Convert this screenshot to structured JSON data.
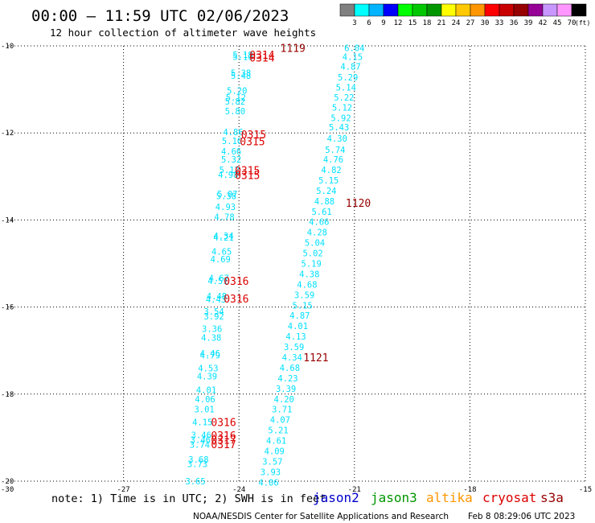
{
  "header": {
    "title": "00:00 – 11:59 UTC 02/06/2023",
    "subtitle": "12 hour collection of altimeter wave heights"
  },
  "colorbar": {
    "colors": [
      "#808080",
      "#00ffff",
      "#00b4ff",
      "#0000ff",
      "#00ff00",
      "#00c800",
      "#009600",
      "#ffff00",
      "#ffc800",
      "#ff9600",
      "#ff0000",
      "#c80000",
      "#960000",
      "#960096",
      "#c896ff",
      "#ff96ff",
      "#000000"
    ],
    "labels": [
      "3",
      "6",
      "9",
      "12",
      "15",
      "18",
      "21",
      "24",
      "27",
      "30",
      "33",
      "36",
      "39",
      "42",
      "45",
      "70"
    ],
    "unit": "(ft)"
  },
  "legend": {
    "note": "note: 1) Time is in UTC; 2) SWH is in feet",
    "satellites": [
      {
        "name": "jason2",
        "color": "#0000cc"
      },
      {
        "name": "jason3",
        "color": "#009600"
      },
      {
        "name": "altika",
        "color": "#ff9600"
      },
      {
        "name": "cryosat",
        "color": "#dd0000"
      },
      {
        "name": "s3a",
        "color": "#960000"
      }
    ]
  },
  "footer": {
    "credit": "NOAA/NESDIS Center for Satellite Applications and Research",
    "timestamp": "Feb  8 08:29:06 UTC 2023"
  },
  "chart_data": {
    "type": "scatter",
    "xlim": [
      -30,
      -15
    ],
    "ylim": [
      -20,
      -10
    ],
    "x_ticks": [
      -27,
      -24,
      -21,
      -18,
      -15
    ],
    "y_ticks": [
      -10,
      -12,
      -14,
      -16,
      -18,
      -20
    ],
    "corner_label": "-30",
    "grid": true,
    "point_color": "#00e0ff",
    "track_east": [
      {
        "x": -21.0,
        "y": -10.05,
        "v": "6.04"
      },
      {
        "x": -21.05,
        "y": -10.25,
        "v": "4.15"
      },
      {
        "x": -21.1,
        "y": -10.47,
        "v": "4.87"
      },
      {
        "x": -21.17,
        "y": -10.72,
        "v": "5.29"
      },
      {
        "x": -21.22,
        "y": -10.95,
        "v": "5.14"
      },
      {
        "x": -21.27,
        "y": -11.18,
        "v": "5.22"
      },
      {
        "x": -21.32,
        "y": -11.41,
        "v": "5.12"
      },
      {
        "x": -21.35,
        "y": -11.65,
        "v": "5.92"
      },
      {
        "x": -21.4,
        "y": -11.87,
        "v": "5.43"
      },
      {
        "x": -21.45,
        "y": -12.13,
        "v": "4.30"
      },
      {
        "x": -21.5,
        "y": -12.38,
        "v": "5.74"
      },
      {
        "x": -21.55,
        "y": -12.61,
        "v": "4.76"
      },
      {
        "x": -21.6,
        "y": -12.85,
        "v": "4.82"
      },
      {
        "x": -21.67,
        "y": -13.09,
        "v": "5.15"
      },
      {
        "x": -21.73,
        "y": -13.33,
        "v": "5.24"
      },
      {
        "x": -21.78,
        "y": -13.57,
        "v": "4.88"
      },
      {
        "x": -21.85,
        "y": -13.81,
        "v": "5.61"
      },
      {
        "x": -21.92,
        "y": -14.04,
        "v": "4.66"
      },
      {
        "x": -21.97,
        "y": -14.28,
        "v": "4.28"
      },
      {
        "x": -22.03,
        "y": -14.52,
        "v": "5.04"
      },
      {
        "x": -22.08,
        "y": -14.76,
        "v": "5.02"
      },
      {
        "x": -22.12,
        "y": -15.0,
        "v": "5.19"
      },
      {
        "x": -22.17,
        "y": -15.24,
        "v": "4.38"
      },
      {
        "x": -22.23,
        "y": -15.48,
        "v": "4.68"
      },
      {
        "x": -22.3,
        "y": -15.72,
        "v": "3.59"
      },
      {
        "x": -22.35,
        "y": -15.96,
        "v": "5.15"
      },
      {
        "x": -22.42,
        "y": -16.19,
        "v": "4.87"
      },
      {
        "x": -22.47,
        "y": -16.43,
        "v": "4.01"
      },
      {
        "x": -22.52,
        "y": -16.67,
        "v": "4.13"
      },
      {
        "x": -22.57,
        "y": -16.91,
        "v": "3.59"
      },
      {
        "x": -22.62,
        "y": -17.15,
        "v": "4.34"
      },
      {
        "x": -22.68,
        "y": -17.39,
        "v": "4.68"
      },
      {
        "x": -22.73,
        "y": -17.63,
        "v": "4.23"
      },
      {
        "x": -22.78,
        "y": -17.87,
        "v": "3.39"
      },
      {
        "x": -22.83,
        "y": -18.11,
        "v": "4.20"
      },
      {
        "x": -22.88,
        "y": -18.35,
        "v": "3.71"
      },
      {
        "x": -22.93,
        "y": -18.59,
        "v": "4.07"
      },
      {
        "x": -22.98,
        "y": -18.83,
        "v": "5.21"
      },
      {
        "x": -23.03,
        "y": -19.07,
        "v": "4.61"
      },
      {
        "x": -23.08,
        "y": -19.31,
        "v": "4.09"
      },
      {
        "x": -23.13,
        "y": -19.55,
        "v": "3.57"
      },
      {
        "x": -23.18,
        "y": -19.79,
        "v": "3.93"
      },
      {
        "x": -23.23,
        "y": -20.03,
        "v": "4.06"
      }
    ],
    "track_west": [
      {
        "x": -23.9,
        "y": -10.2,
        "v": "5.18"
      },
      {
        "x": -23.9,
        "y": -10.25,
        "v": "5.10"
      },
      {
        "x": -23.95,
        "y": -10.62,
        "v": "5.38"
      },
      {
        "x": -23.95,
        "y": -10.68,
        "v": "5.48"
      },
      {
        "x": -24.05,
        "y": -11.03,
        "v": "5.20"
      },
      {
        "x": -24.08,
        "y": -11.18,
        "v": "5.12"
      },
      {
        "x": -24.1,
        "y": -11.28,
        "v": "5.82"
      },
      {
        "x": -24.1,
        "y": -11.5,
        "v": "5.80"
      },
      {
        "x": -24.15,
        "y": -11.98,
        "v": "4.86"
      },
      {
        "x": -24.18,
        "y": -12.18,
        "v": "5.10"
      },
      {
        "x": -24.2,
        "y": -12.42,
        "v": "4.66"
      },
      {
        "x": -24.2,
        "y": -12.61,
        "v": "5.32"
      },
      {
        "x": -24.25,
        "y": -12.85,
        "v": "5.12"
      },
      {
        "x": -24.28,
        "y": -12.96,
        "v": "4.98"
      },
      {
        "x": -24.3,
        "y": -13.4,
        "v": "5.07"
      },
      {
        "x": -24.33,
        "y": -13.45,
        "v": "5.38"
      },
      {
        "x": -24.35,
        "y": -13.7,
        "v": "4.93"
      },
      {
        "x": -24.38,
        "y": -13.93,
        "v": "4.78"
      },
      {
        "x": -24.4,
        "y": -14.36,
        "v": "4.34"
      },
      {
        "x": -24.4,
        "y": -14.4,
        "v": "4.21"
      },
      {
        "x": -24.45,
        "y": -14.72,
        "v": "4.65"
      },
      {
        "x": -24.48,
        "y": -14.9,
        "v": "4.69"
      },
      {
        "x": -24.52,
        "y": -15.33,
        "v": "4.67"
      },
      {
        "x": -24.55,
        "y": -15.4,
        "v": "4.51"
      },
      {
        "x": -24.58,
        "y": -15.75,
        "v": "4.48"
      },
      {
        "x": -24.6,
        "y": -15.82,
        "v": "4.43"
      },
      {
        "x": -24.65,
        "y": -16.1,
        "v": "3.54"
      },
      {
        "x": -24.65,
        "y": -16.21,
        "v": "3.92"
      },
      {
        "x": -24.7,
        "y": -16.5,
        "v": "3.36"
      },
      {
        "x": -24.72,
        "y": -16.7,
        "v": "4.38"
      },
      {
        "x": -24.75,
        "y": -17.06,
        "v": "4.46"
      },
      {
        "x": -24.75,
        "y": -17.11,
        "v": "4.79"
      },
      {
        "x": -24.8,
        "y": -17.4,
        "v": "4.53"
      },
      {
        "x": -24.83,
        "y": -17.59,
        "v": "4.39"
      },
      {
        "x": -24.85,
        "y": -17.9,
        "v": "4.01"
      },
      {
        "x": -24.88,
        "y": -18.11,
        "v": "4.06"
      },
      {
        "x": -24.9,
        "y": -18.35,
        "v": "3.01"
      },
      {
        "x": -24.95,
        "y": -18.64,
        "v": "4.15"
      },
      {
        "x": -24.98,
        "y": -18.94,
        "v": "3.46"
      },
      {
        "x": -25.0,
        "y": -19.05,
        "v": "3.46"
      },
      {
        "x": -25.02,
        "y": -19.16,
        "v": "3.74"
      },
      {
        "x": -25.05,
        "y": -19.5,
        "v": "3.68"
      },
      {
        "x": -25.08,
        "y": -19.6,
        "v": "3.73"
      },
      {
        "x": -25.13,
        "y": -20.0,
        "v": "3.65"
      }
    ],
    "time_labels": [
      {
        "x": -22.6,
        "y": -10.05,
        "t": "1119",
        "color": "#960000"
      },
      {
        "x": -23.4,
        "y": -10.2,
        "t": "0314",
        "color": "#dd0000"
      },
      {
        "x": -23.4,
        "y": -10.27,
        "t": "0314",
        "color": "#dd0000"
      },
      {
        "x": -23.62,
        "y": -12.03,
        "t": "0315",
        "color": "#dd0000"
      },
      {
        "x": -23.65,
        "y": -12.19,
        "t": "0315",
        "color": "#dd0000"
      },
      {
        "x": -23.78,
        "y": -12.86,
        "t": "0315",
        "color": "#dd0000"
      },
      {
        "x": -23.78,
        "y": -12.97,
        "t": "0315",
        "color": "#dd0000"
      },
      {
        "x": -20.9,
        "y": -13.6,
        "t": "1120",
        "color": "#960000"
      },
      {
        "x": -24.07,
        "y": -15.4,
        "t": "0316",
        "color": "#dd0000"
      },
      {
        "x": -24.07,
        "y": -15.8,
        "t": "0316",
        "color": "#dd0000"
      },
      {
        "x": -22.0,
        "y": -17.15,
        "t": "1121",
        "color": "#960000"
      },
      {
        "x": -24.4,
        "y": -18.64,
        "t": "0316",
        "color": "#dd0000"
      },
      {
        "x": -24.4,
        "y": -18.95,
        "t": "0316",
        "color": "#dd0000"
      },
      {
        "x": -24.4,
        "y": -19.05,
        "t": "0317",
        "color": "#dd0000"
      },
      {
        "x": -24.4,
        "y": -19.15,
        "t": "0317",
        "color": "#dd0000"
      }
    ]
  }
}
